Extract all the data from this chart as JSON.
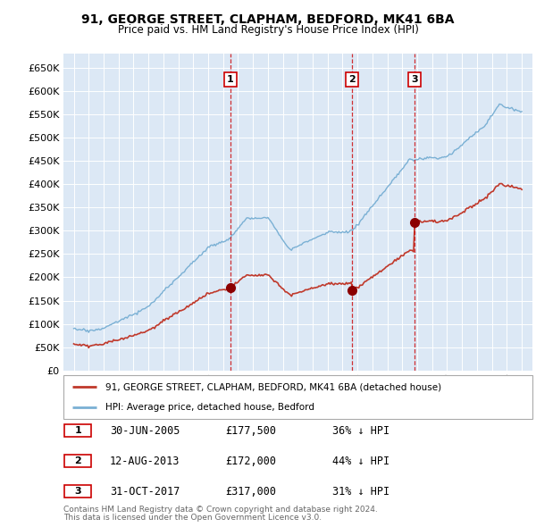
{
  "title1": "91, GEORGE STREET, CLAPHAM, BEDFORD, MK41 6BA",
  "title2": "Price paid vs. HM Land Registry's House Price Index (HPI)",
  "plot_bg": "#dce8f5",
  "legend_label_red": "91, GEORGE STREET, CLAPHAM, BEDFORD, MK41 6BA (detached house)",
  "legend_label_blue": "HPI: Average price, detached house, Bedford",
  "transactions": [
    {
      "num": 1,
      "date": "30-JUN-2005",
      "price": 177500,
      "pct": "36%",
      "year": 2005.5
    },
    {
      "num": 2,
      "date": "12-AUG-2013",
      "price": 172000,
      "pct": "44%",
      "year": 2013.62
    },
    {
      "num": 3,
      "date": "31-OCT-2017",
      "price": 317000,
      "pct": "31%",
      "year": 2017.83
    }
  ],
  "footnote1": "Contains HM Land Registry data © Crown copyright and database right 2024.",
  "footnote2": "This data is licensed under the Open Government Licence v3.0.",
  "ylim_max": 680000,
  "ylim_min": 0,
  "xlim_min": 1994.3,
  "xlim_max": 2025.7
}
